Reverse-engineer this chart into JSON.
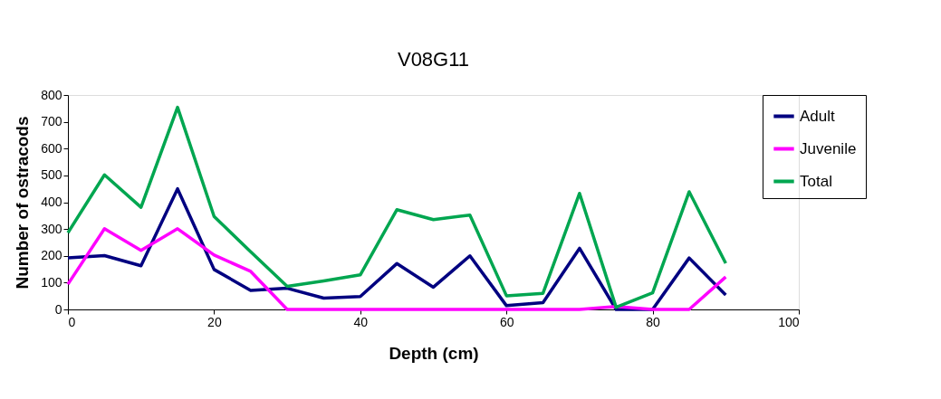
{
  "chart_data": {
    "type": "line",
    "title": "V08G11",
    "xlabel": "Depth (cm)",
    "ylabel": "Number of ostracods",
    "x": [
      0,
      5,
      10,
      15,
      20,
      25,
      30,
      35,
      40,
      45,
      50,
      55,
      60,
      65,
      70,
      75,
      80,
      85,
      90
    ],
    "series": [
      {
        "name": "Adult",
        "color": "#000080",
        "values": [
          192,
          201,
          163,
          450,
          149,
          71,
          79,
          42,
          48,
          171,
          83,
          200,
          14,
          25,
          228,
          0,
          0,
          192,
          54
        ]
      },
      {
        "name": "Juvenile",
        "color": "#ff00ff",
        "values": [
          94,
          301,
          220,
          301,
          203,
          142,
          0,
          0,
          0,
          0,
          0,
          0,
          0,
          0,
          0,
          11,
          0,
          0,
          121
        ]
      },
      {
        "name": "Total",
        "color": "#00a650",
        "values": [
          286,
          502,
          381,
          754,
          347,
          215,
          86,
          106,
          129,
          372,
          335,
          352,
          51,
          60,
          433,
          8,
          62,
          439,
          172
        ]
      }
    ],
    "xlim": [
      0,
      100
    ],
    "xticks": [
      0,
      20,
      40,
      60,
      80,
      100
    ],
    "ylim": [
      0,
      800
    ],
    "yticks": [
      0,
      100,
      200,
      300,
      400,
      500,
      600,
      700,
      800
    ],
    "grid": false,
    "legend": "right",
    "marker": "none",
    "line_style": "solid"
  }
}
